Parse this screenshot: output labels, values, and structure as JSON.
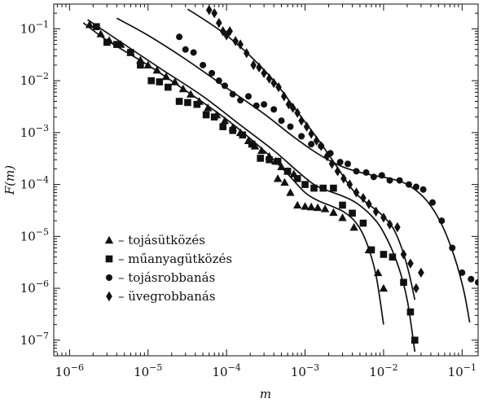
{
  "chart_data": {
    "type": "scatter",
    "xlabel": "m",
    "ylabel": "F(m)",
    "xscale": "log",
    "yscale": "log",
    "xlim": [
      6.3e-07,
      0.16
    ],
    "ylim": [
      5e-08,
      0.3
    ],
    "x_ticks": [
      {
        "v": 1e-06,
        "base": "10",
        "exp": "−6"
      },
      {
        "v": 1e-05,
        "base": "10",
        "exp": "−5"
      },
      {
        "v": 0.0001,
        "base": "10",
        "exp": "−4"
      },
      {
        "v": 0.001,
        "base": "10",
        "exp": "−3"
      },
      {
        "v": 0.01,
        "base": "10",
        "exp": "−2"
      },
      {
        "v": 0.1,
        "base": "10",
        "exp": "−1"
      }
    ],
    "y_ticks": [
      {
        "v": 1e-07,
        "base": "10",
        "exp": "−7"
      },
      {
        "v": 1e-06,
        "base": "10",
        "exp": "−6"
      },
      {
        "v": 1e-05,
        "base": "10",
        "exp": "−5"
      },
      {
        "v": 0.0001,
        "base": "10",
        "exp": "−4"
      },
      {
        "v": 0.001,
        "base": "10",
        "exp": "−3"
      },
      {
        "v": 0.01,
        "base": "10",
        "exp": "−2"
      },
      {
        "v": 0.1,
        "base": "10",
        "exp": "−1"
      }
    ],
    "legend_position": "bottom-left",
    "series": [
      {
        "name": "tojásütközés",
        "marker": "triangle",
        "points": [
          [
            1.8e-06,
            0.12
          ],
          [
            2.5e-06,
            0.08
          ],
          [
            3.2e-06,
            0.06
          ],
          [
            4.5e-06,
            0.05
          ],
          [
            6e-06,
            0.035
          ],
          [
            8e-06,
            0.025
          ],
          [
            1e-05,
            0.02
          ],
          [
            1.3e-05,
            0.016
          ],
          [
            1.7e-05,
            0.012
          ],
          [
            2.2e-05,
            0.0095
          ],
          [
            2.8e-05,
            0.007
          ],
          [
            3.5e-05,
            0.0055
          ],
          [
            4.5e-05,
            0.004
          ],
          [
            5.8e-05,
            0.003
          ],
          [
            7.5e-05,
            0.0022
          ],
          [
            9.5e-05,
            0.0017
          ],
          [
            0.00012,
            0.00125
          ],
          [
            0.00015,
            0.001
          ],
          [
            0.00019,
            0.0007
          ],
          [
            0.00023,
            0.00055
          ],
          [
            0.00028,
            0.00045
          ],
          [
            0.00035,
            0.00035
          ],
          [
            0.00042,
            0.00028
          ],
          [
            0.0005,
            0.00022
          ],
          [
            0.0006,
            0.00018
          ],
          [
            0.00072,
            0.00016
          ],
          [
            0.00045,
            0.00013
          ],
          [
            0.00055,
            0.00011
          ],
          [
            0.00065,
            7e-05
          ],
          [
            0.0008,
            4e-05
          ],
          [
            0.001,
            3.8e-05
          ],
          [
            0.0012,
            3.7e-05
          ],
          [
            0.00145,
            3.6e-05
          ],
          [
            0.0018,
            3.4e-05
          ],
          [
            0.0023,
            2.9e-05
          ],
          [
            0.003,
            2.3e-05
          ],
          [
            0.0042,
            1.5e-05
          ],
          [
            0.0065,
            5.5e-06
          ],
          [
            0.0085,
            2e-06
          ],
          [
            0.01,
            1e-06
          ]
        ],
        "fit": [
          [
            1.5e-06,
            0.13
          ],
          [
            3e-06,
            0.06
          ],
          [
            1e-05,
            0.02
          ],
          [
            3e-05,
            0.0065
          ],
          [
            0.0001,
            0.0018
          ],
          [
            0.0003,
            0.00045
          ],
          [
            0.0006,
            0.00016
          ],
          [
            0.001,
            7e-05
          ],
          [
            0.0015,
            4.8e-05
          ],
          [
            0.0022,
            3.8e-05
          ],
          [
            0.0032,
            2.9e-05
          ],
          [
            0.0045,
            1.8e-05
          ],
          [
            0.006,
            8e-06
          ],
          [
            0.008,
            1.8e-06
          ],
          [
            0.01,
            2e-07
          ]
        ]
      },
      {
        "name": "műanyagütközés",
        "marker": "square",
        "points": [
          [
            2.2e-06,
            0.11
          ],
          [
            3e-06,
            0.055
          ],
          [
            4e-06,
            0.05
          ],
          [
            6e-06,
            0.035
          ],
          [
            8e-06,
            0.02
          ],
          [
            1.1e-05,
            0.01
          ],
          [
            1.4e-05,
            0.0095
          ],
          [
            1.8e-05,
            0.0075
          ],
          [
            2.5e-05,
            0.004
          ],
          [
            3.2e-05,
            0.0038
          ],
          [
            4.2e-05,
            0.0035
          ],
          [
            5.5e-05,
            0.0022
          ],
          [
            7e-05,
            0.002
          ],
          [
            9e-05,
            0.0013
          ],
          [
            0.00012,
            0.0011
          ],
          [
            0.00016,
            0.0009
          ],
          [
            0.00021,
            0.0006
          ],
          [
            0.00027,
            0.00032
          ],
          [
            0.00035,
            0.0003
          ],
          [
            0.00045,
            0.00028
          ],
          [
            0.0006,
            0.00018
          ],
          [
            0.0008,
            0.00013
          ],
          [
            0.001,
            0.0001
          ],
          [
            0.0013,
            8.5e-05
          ],
          [
            0.0017,
            8.5e-05
          ],
          [
            0.0023,
            8.5e-05
          ],
          [
            0.003,
            4e-05
          ],
          [
            0.004,
            2.8e-05
          ],
          [
            0.0055,
            1.8e-05
          ],
          [
            0.007,
            5.5e-06
          ],
          [
            0.01,
            4.5e-06
          ],
          [
            0.013,
            4e-06
          ],
          [
            0.018,
            1.3e-06
          ],
          [
            0.022,
            3.5e-07
          ],
          [
            0.025,
            1e-07
          ]
        ],
        "fit": [
          [
            1.7e-06,
            0.15
          ],
          [
            5e-06,
            0.05
          ],
          [
            1.5e-05,
            0.0165
          ],
          [
            5e-05,
            0.005
          ],
          [
            0.00015,
            0.0014
          ],
          [
            0.0004,
            0.00045
          ],
          [
            0.0008,
            0.00018
          ],
          [
            0.0013,
            0.0001
          ],
          [
            0.002,
            7.5e-05
          ],
          [
            0.003,
            6e-05
          ],
          [
            0.0045,
            4.4e-05
          ],
          [
            0.007,
            2.5e-05
          ],
          [
            0.01,
            1.2e-05
          ],
          [
            0.015,
            3e-06
          ],
          [
            0.02,
            6e-07
          ],
          [
            0.025,
            6e-08
          ]
        ]
      },
      {
        "name": "tojásrobbanás",
        "marker": "circle",
        "points": [
          [
            2.5e-05,
            0.07
          ],
          [
            3e-05,
            0.04
          ],
          [
            3.8e-05,
            0.035
          ],
          [
            5e-05,
            0.02
          ],
          [
            6.5e-05,
            0.014
          ],
          [
            8e-05,
            0.01
          ],
          [
            9.5e-05,
            0.008
          ],
          [
            0.00012,
            0.0055
          ],
          [
            0.00015,
            0.0042
          ],
          [
            0.00019,
            0.005
          ],
          [
            0.00024,
            0.0033
          ],
          [
            0.0003,
            0.0035
          ],
          [
            0.0004,
            0.0028
          ],
          [
            0.0005,
            0.0017
          ],
          [
            0.00065,
            0.0013
          ],
          [
            0.0009,
            0.00085
          ],
          [
            0.0012,
            0.0006
          ],
          [
            0.0016,
            0.00055
          ],
          [
            0.0021,
            0.0004
          ],
          [
            0.0028,
            0.00027
          ],
          [
            0.0035,
            0.00025
          ],
          [
            0.0045,
            0.00018
          ],
          [
            0.006,
            0.00017
          ],
          [
            0.0075,
            0.00014
          ],
          [
            0.0095,
            0.00015
          ],
          [
            0.012,
            0.00012
          ],
          [
            0.016,
            0.00012
          ],
          [
            0.021,
            0.0001
          ],
          [
            0.026,
            9e-05
          ],
          [
            0.032,
            8e-05
          ],
          [
            0.042,
            4.5e-05
          ],
          [
            0.055,
            2e-05
          ],
          [
            0.075,
            6e-06
          ],
          [
            0.1,
            2e-06
          ],
          [
            0.13,
            1.5e-06
          ],
          [
            0.16,
            1.3e-06
          ]
        ],
        "fit": [
          [
            4e-06,
            0.16
          ],
          [
            1e-05,
            0.075
          ],
          [
            3e-05,
            0.026
          ],
          [
            0.0001,
            0.0073
          ],
          [
            0.0003,
            0.0023
          ],
          [
            0.0007,
            0.00085
          ],
          [
            0.0015,
            0.00038
          ],
          [
            0.003,
            0.00022
          ],
          [
            0.006,
            0.00016
          ],
          [
            0.012,
            0.00013
          ],
          [
            0.02,
            0.0001
          ],
          [
            0.035,
            5e-05
          ],
          [
            0.055,
            1.7e-05
          ],
          [
            0.08,
            4e-06
          ],
          [
            0.105,
            9e-07
          ],
          [
            0.125,
            2.2e-07
          ]
        ]
      },
      {
        "name": "üvegrobbanás",
        "marker": "diamond",
        "points": [
          [
            6e-05,
            0.23
          ],
          [
            7e-05,
            0.2
          ],
          [
            8e-05,
            0.13
          ],
          [
            9e-05,
            0.09
          ],
          [
            0.0001,
            0.075
          ],
          [
            0.00011,
            0.09
          ],
          [
            0.00013,
            0.058
          ],
          [
            0.00015,
            0.05
          ],
          [
            0.00018,
            0.034
          ],
          [
            0.00022,
            0.02
          ],
          [
            0.00026,
            0.018
          ],
          [
            0.0003,
            0.014
          ],
          [
            0.00035,
            0.011
          ],
          [
            0.0004,
            0.009
          ],
          [
            0.00046,
            0.0075
          ],
          [
            0.00054,
            0.005
          ],
          [
            0.00062,
            0.0035
          ],
          [
            0.0007,
            0.003
          ],
          [
            0.0008,
            0.0024
          ],
          [
            0.0009,
            0.0017
          ],
          [
            0.00105,
            0.0013
          ],
          [
            0.0012,
            0.00095
          ],
          [
            0.0014,
            0.0007
          ],
          [
            0.0016,
            0.00055
          ],
          [
            0.0019,
            0.00035
          ],
          [
            0.0022,
            0.00025
          ],
          [
            0.0026,
            0.00018
          ],
          [
            0.0031,
            0.00013
          ],
          [
            0.0037,
            0.0001
          ],
          [
            0.0045,
            7e-05
          ],
          [
            0.0055,
            5.5e-05
          ],
          [
            0.0065,
            4.2e-05
          ],
          [
            0.008,
            3e-05
          ],
          [
            0.01,
            2.3e-05
          ],
          [
            0.012,
            1.7e-05
          ],
          [
            0.015,
            1.5e-05
          ],
          [
            0.018,
            4.5e-06
          ],
          [
            0.022,
            3e-06
          ],
          [
            0.026,
            1e-06
          ],
          [
            0.03,
            2e-06
          ]
        ],
        "fit": [
          [
            3.2e-05,
            0.24
          ],
          [
            6e-05,
            0.13
          ],
          [
            0.0001,
            0.075
          ],
          [
            0.0002,
            0.03
          ],
          [
            0.0004,
            0.01
          ],
          [
            0.0008,
            0.0025
          ],
          [
            0.0015,
            0.0007
          ],
          [
            0.0025,
            0.00023
          ],
          [
            0.004,
            8e-05
          ],
          [
            0.006,
            4.5e-05
          ],
          [
            0.009,
            2.8e-05
          ],
          [
            0.013,
            1.5e-05
          ],
          [
            0.017,
            6e-06
          ],
          [
            0.021,
            2e-06
          ],
          [
            0.025,
            6e-07
          ]
        ]
      }
    ],
    "legend": [
      {
        "marker": "triangle",
        "label": "– tojásütközés"
      },
      {
        "marker": "square",
        "label": "– műanyagütközés"
      },
      {
        "marker": "circle",
        "label": "– tojásrobbanás"
      },
      {
        "marker": "diamond",
        "label": "– üvegrobbanás"
      }
    ]
  }
}
